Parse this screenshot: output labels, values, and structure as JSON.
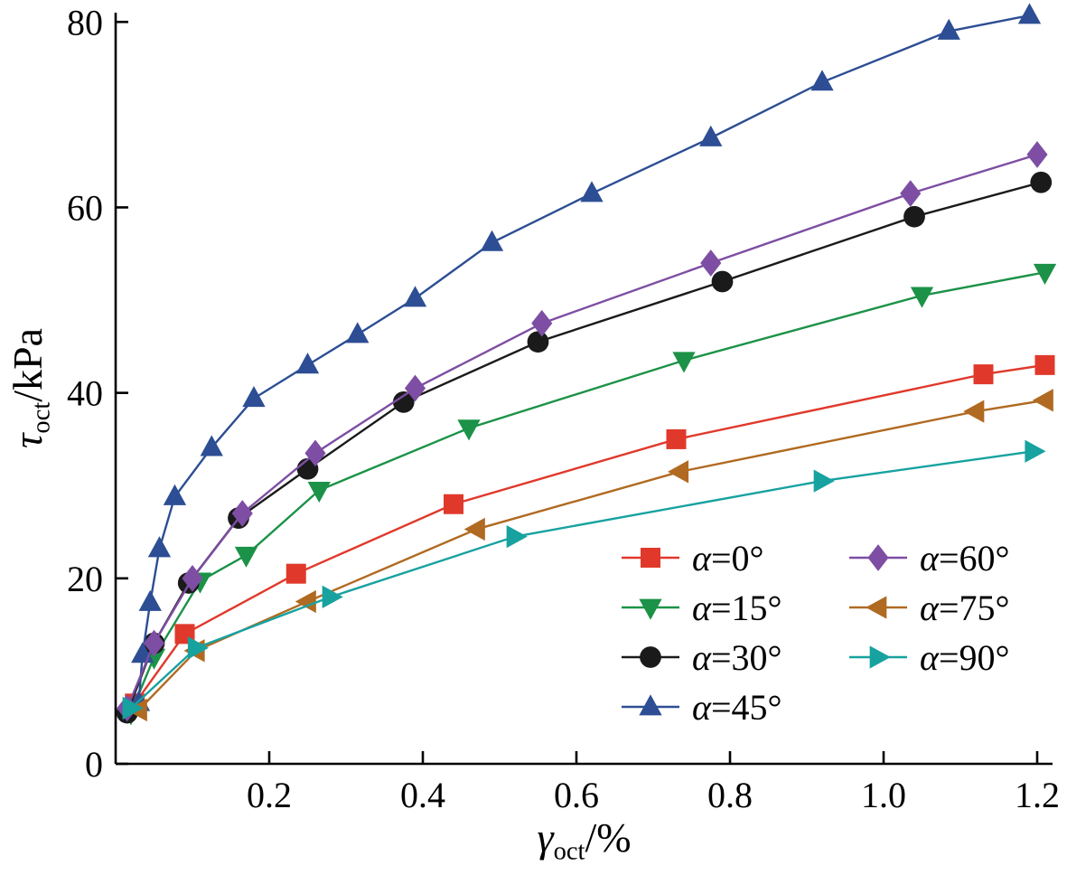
{
  "figure": {
    "background": "#ffffff",
    "axis_color": "#000000"
  },
  "chart_data": {
    "type": "line",
    "title": "",
    "xlabel_parts": [
      {
        "t": "γ",
        "italic": true
      },
      {
        "t": "oct",
        "sub": true
      },
      {
        "t": "/%"
      }
    ],
    "ylabel_parts": [
      {
        "t": "τ",
        "italic": true
      },
      {
        "t": "oct",
        "sub": true
      },
      {
        "t": "/kPa"
      }
    ],
    "xlim": [
      0,
      1.22
    ],
    "ylim": [
      0,
      81
    ],
    "grid": false,
    "legend_position": "lower-right",
    "xticks": [
      {
        "v": 0.2,
        "label": "0.2"
      },
      {
        "v": 0.4,
        "label": "0.4"
      },
      {
        "v": 0.6,
        "label": "0.6"
      },
      {
        "v": 0.8,
        "label": "0.8"
      },
      {
        "v": 1.0,
        "label": "1.0"
      },
      {
        "v": 1.2,
        "label": "1.2"
      }
    ],
    "yticks": [
      {
        "v": 0,
        "label": "0"
      },
      {
        "v": 20,
        "label": "20"
      },
      {
        "v": 40,
        "label": "40"
      },
      {
        "v": 60,
        "label": "60"
      },
      {
        "v": 80,
        "label": "80"
      }
    ],
    "series": [
      {
        "name": "α=0°",
        "color": "#e0392b",
        "marker": "square",
        "x": [
          0.025,
          0.09,
          0.235,
          0.44,
          0.73,
          1.13,
          1.21
        ],
        "y": [
          6.5,
          14,
          20.5,
          28,
          35,
          42,
          43
        ]
      },
      {
        "name": "α=15°",
        "color": "#1b9247",
        "marker": "triangle-down",
        "x": [
          0.02,
          0.05,
          0.11,
          0.17,
          0.265,
          0.46,
          0.74,
          1.05,
          1.21
        ],
        "y": [
          5.5,
          11.5,
          19.7,
          22.5,
          29.5,
          36.2,
          43.5,
          50.5,
          53
        ]
      },
      {
        "name": "α=30°",
        "color": "#1a1a1a",
        "marker": "circle",
        "x": [
          0.015,
          0.05,
          0.095,
          0.16,
          0.25,
          0.375,
          0.55,
          0.79,
          1.04,
          1.205
        ],
        "y": [
          5.5,
          13,
          19.5,
          26.5,
          31.8,
          39,
          45.5,
          52,
          59,
          62.7
        ]
      },
      {
        "name": "α=45°",
        "color": "#2d4e94",
        "marker": "triangle-up",
        "x": [
          0.03,
          0.035,
          0.045,
          0.057,
          0.077,
          0.125,
          0.18,
          0.25,
          0.315,
          0.39,
          0.49,
          0.62,
          0.775,
          0.92,
          1.085,
          1.19
        ],
        "y": [
          6.6,
          11.8,
          17.4,
          23.2,
          28.8,
          34.1,
          39.4,
          43,
          46.3,
          50.2,
          56.2,
          61.5,
          67.5,
          73.5,
          79,
          80.7
        ]
      },
      {
        "name": "α=60°",
        "color": "#7d4ea3",
        "marker": "diamond",
        "x": [
          0.015,
          0.05,
          0.1,
          0.165,
          0.26,
          0.39,
          0.555,
          0.775,
          1.035,
          1.2
        ],
        "y": [
          6,
          13,
          20,
          27,
          33.5,
          40.5,
          47.5,
          54,
          61.5,
          65.7
        ]
      },
      {
        "name": "α=75°",
        "color": "#b06a21",
        "marker": "triangle-left",
        "x": [
          0.03,
          0.105,
          0.25,
          0.47,
          0.735,
          1.12,
          1.21
        ],
        "y": [
          5.8,
          12.2,
          17.5,
          25.3,
          31.5,
          38,
          39.2
        ]
      },
      {
        "name": "α=90°",
        "color": "#17a2a0",
        "marker": "triangle-right",
        "x": [
          0.02,
          0.105,
          0.28,
          0.52,
          0.92,
          1.195
        ],
        "y": [
          6,
          12.5,
          18,
          24.5,
          30.5,
          33.7
        ]
      }
    ]
  }
}
